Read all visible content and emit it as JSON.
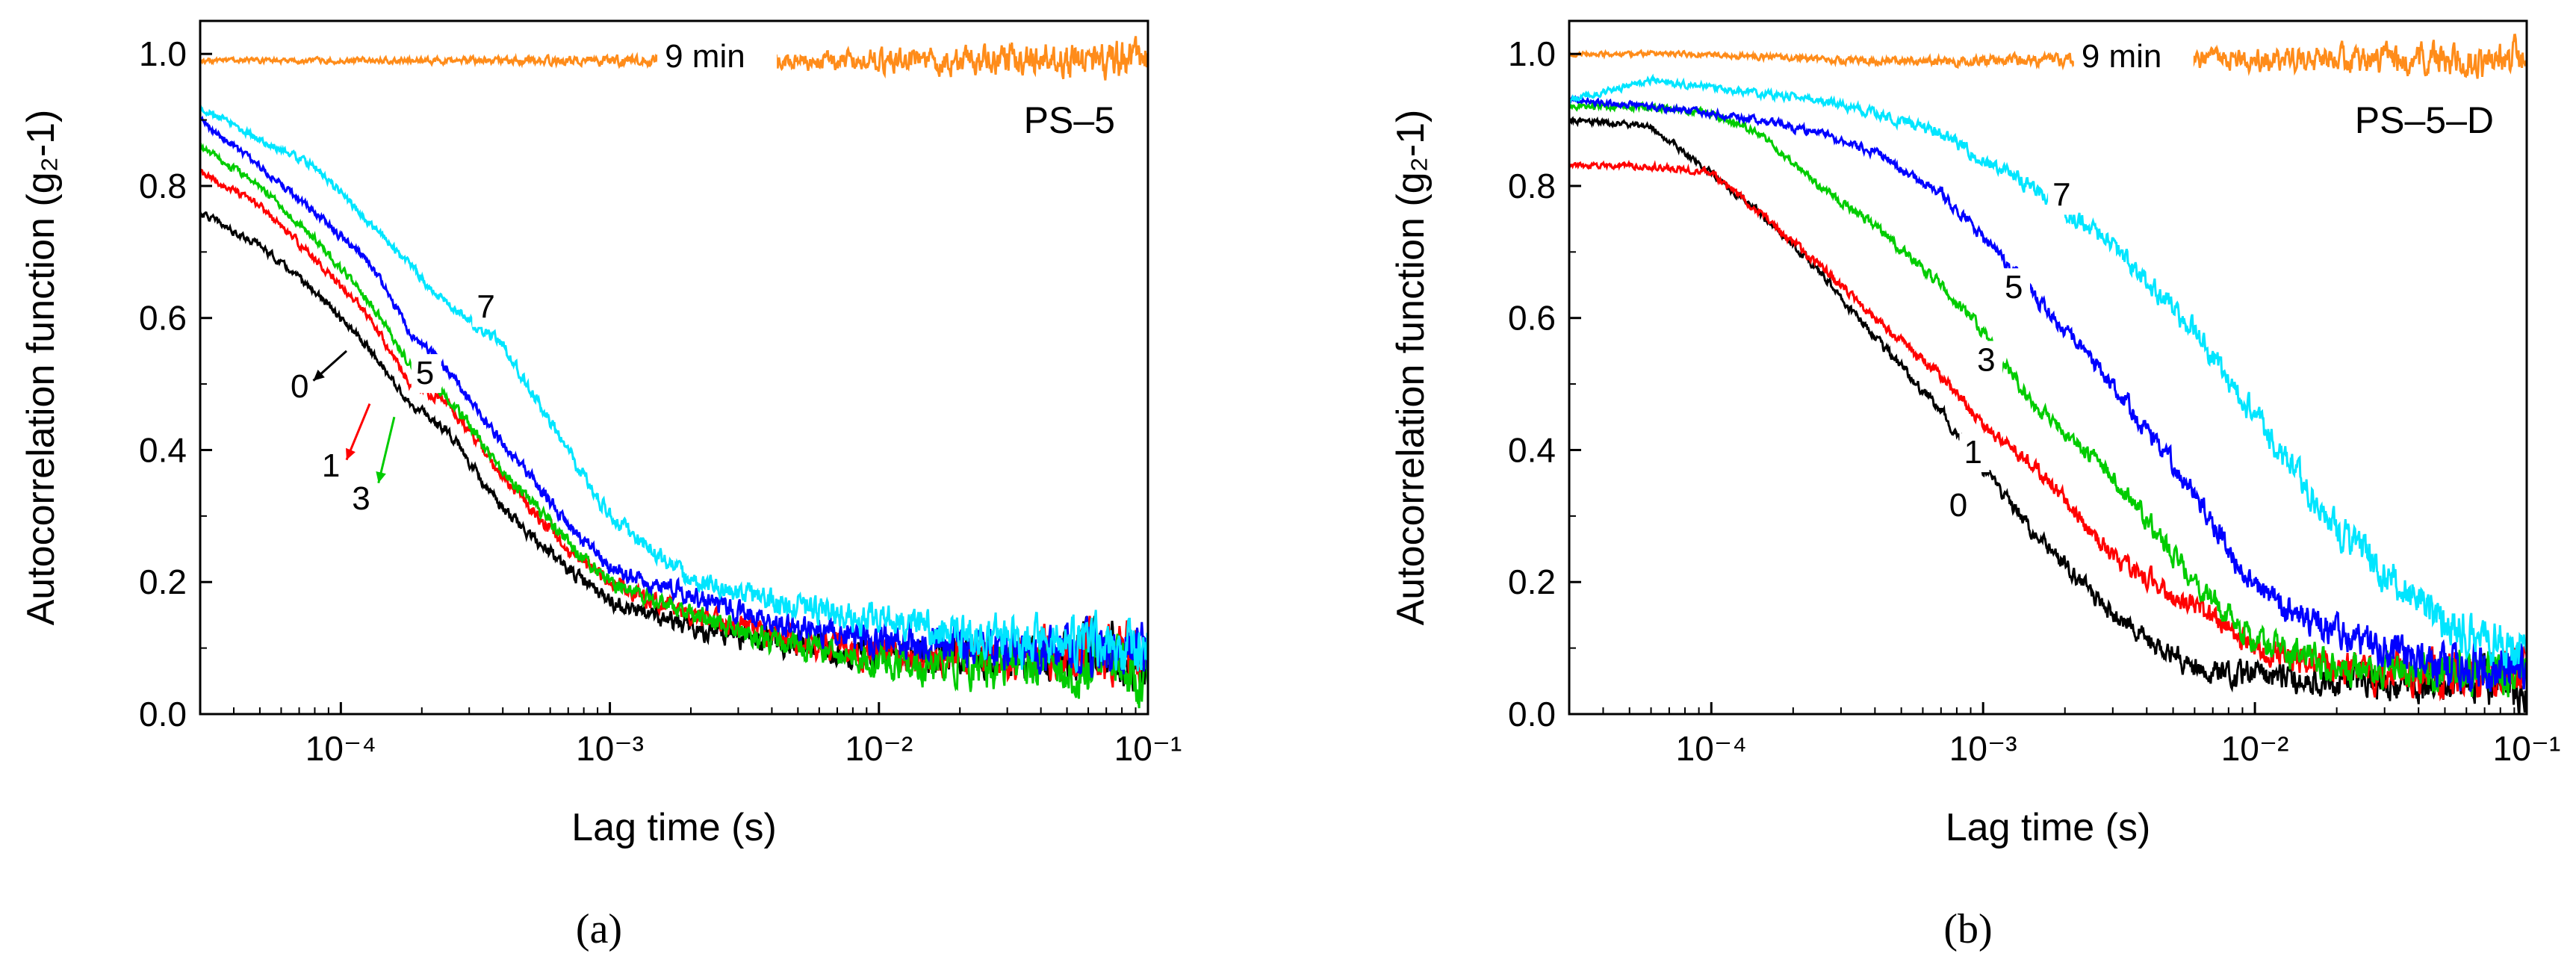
{
  "chart_data": [
    {
      "panel": "a",
      "type": "line",
      "caption": "(a)",
      "xlabel": "Lag time (s)",
      "ylabel": "Autocorrelation function (g₂-1)",
      "xscale": "log",
      "xlim": [
        3e-05,
        0.1
      ],
      "ylim": [
        0.0,
        1.05
      ],
      "xticks": [
        0.0001,
        0.001,
        0.01,
        0.1
      ],
      "xtick_labels": [
        "10⁻⁴",
        "10⁻³",
        "10⁻²",
        "10⁻¹"
      ],
      "yticks": [
        0.0,
        0.2,
        0.4,
        0.6,
        0.8,
        1.0
      ],
      "ytick_labels": [
        "0.0",
        "0.2",
        "0.4",
        "0.6",
        "0.8",
        "1.0"
      ],
      "sample_label": "PS–5",
      "series": [
        {
          "name": "0",
          "color": "#000000",
          "noise": 0.012,
          "x": [
            3e-05,
            5e-05,
            8e-05,
            0.00013,
            0.00018,
            0.00025,
            0.0004,
            0.0007,
            0.001,
            0.002,
            0.004,
            0.01,
            0.03,
            0.1
          ],
          "y": [
            0.76,
            0.71,
            0.64,
            0.55,
            0.47,
            0.43,
            0.31,
            0.22,
            0.17,
            0.13,
            0.11,
            0.09,
            0.09,
            0.09
          ]
        },
        {
          "name": "1",
          "color": "#ff0000",
          "noise": 0.012,
          "x": [
            3e-05,
            5e-05,
            8e-05,
            0.00013,
            0.00018,
            0.00025,
            0.0004,
            0.0007,
            0.001,
            0.002,
            0.004,
            0.01,
            0.03,
            0.1
          ],
          "y": [
            0.82,
            0.77,
            0.69,
            0.6,
            0.5,
            0.47,
            0.36,
            0.25,
            0.2,
            0.15,
            0.12,
            0.09,
            0.09,
            0.09
          ]
        },
        {
          "name": "3",
          "color": "#00cc00",
          "noise": 0.012,
          "x": [
            3e-05,
            5e-05,
            8e-05,
            0.00013,
            0.00018,
            0.00025,
            0.0004,
            0.0007,
            0.001,
            0.002,
            0.004,
            0.01,
            0.03,
            0.1
          ],
          "y": [
            0.86,
            0.8,
            0.72,
            0.62,
            0.53,
            0.48,
            0.37,
            0.26,
            0.2,
            0.15,
            0.11,
            0.08,
            0.07,
            0.07
          ]
        },
        {
          "name": "5",
          "color": "#0000ff",
          "noise": 0.012,
          "x": [
            3e-05,
            5e-05,
            8e-05,
            0.00013,
            0.00018,
            0.00025,
            0.0004,
            0.0007,
            0.001,
            0.002,
            0.004,
            0.01,
            0.03,
            0.1
          ],
          "y": [
            0.9,
            0.83,
            0.76,
            0.68,
            0.58,
            0.52,
            0.41,
            0.29,
            0.22,
            0.18,
            0.14,
            0.11,
            0.1,
            0.1
          ]
        },
        {
          "name": "7",
          "color": "#00e5ff",
          "noise": 0.012,
          "x": [
            3e-05,
            5e-05,
            8e-05,
            0.00013,
            0.00018,
            0.00025,
            0.0004,
            0.0007,
            0.001,
            0.002,
            0.004,
            0.01,
            0.03,
            0.1
          ],
          "y": [
            0.92,
            0.87,
            0.83,
            0.74,
            0.68,
            0.62,
            0.56,
            0.4,
            0.3,
            0.2,
            0.17,
            0.14,
            0.11,
            0.1
          ]
        },
        {
          "name": "9 min",
          "color": "#ff8c1a",
          "noise": 0.008,
          "x": [
            3e-05,
            0.0001,
            0.0003,
            0.001,
            0.003,
            0.01,
            0.03,
            0.1
          ],
          "y": [
            0.99,
            0.99,
            0.99,
            0.99,
            0.99,
            0.99,
            0.99,
            0.99
          ]
        }
      ],
      "annotations": [
        {
          "text": "9 min",
          "x": 0.0016,
          "y": 0.98
        },
        {
          "text": "7",
          "x": 0.00032,
          "y": 0.6
        },
        {
          "text": "5",
          "x": 0.00019,
          "y": 0.5
        },
        {
          "text": "0",
          "x": 6.5e-05,
          "y": 0.48
        },
        {
          "text": "1",
          "x": 8.5e-05,
          "y": 0.36
        },
        {
          "text": "3",
          "x": 0.00011,
          "y": 0.31
        }
      ]
    },
    {
      "panel": "b",
      "type": "line",
      "caption": "(b)",
      "xlabel": "Lag time (s)",
      "ylabel": "Autocorrelation function (g₂-1)",
      "xscale": "log",
      "xlim": [
        3e-05,
        0.1
      ],
      "ylim": [
        0.0,
        1.05
      ],
      "xticks": [
        0.0001,
        0.001,
        0.01,
        0.1
      ],
      "xtick_labels": [
        "10⁻⁴",
        "10⁻³",
        "10⁻²",
        "10⁻¹"
      ],
      "yticks": [
        0.0,
        0.2,
        0.4,
        0.6,
        0.8,
        1.0
      ],
      "ytick_labels": [
        "0.0",
        "0.2",
        "0.4",
        "0.6",
        "0.8",
        "1.0"
      ],
      "sample_label": "PS–5–D",
      "series": [
        {
          "name": "0",
          "color": "#000000",
          "noise": 0.01,
          "x": [
            3e-05,
            6e-05,
            0.0001,
            0.00015,
            0.00025,
            0.0004,
            0.0007,
            0.001,
            0.0015,
            0.003,
            0.006,
            0.01,
            0.02,
            0.05,
            0.1
          ],
          "y": [
            0.9,
            0.89,
            0.82,
            0.76,
            0.67,
            0.57,
            0.46,
            0.37,
            0.28,
            0.15,
            0.07,
            0.06,
            0.05,
            0.05,
            0.05
          ]
        },
        {
          "name": "1",
          "color": "#ff0000",
          "noise": 0.01,
          "x": [
            3e-05,
            6e-05,
            0.0001,
            0.00015,
            0.00025,
            0.0004,
            0.0007,
            0.001,
            0.0015,
            0.003,
            0.006,
            0.01,
            0.02,
            0.05,
            0.1
          ],
          "y": [
            0.83,
            0.83,
            0.82,
            0.76,
            0.68,
            0.6,
            0.51,
            0.44,
            0.38,
            0.24,
            0.16,
            0.1,
            0.07,
            0.06,
            0.06
          ]
        },
        {
          "name": "3",
          "color": "#00cc00",
          "noise": 0.01,
          "x": [
            3e-05,
            6e-05,
            0.0001,
            0.00015,
            0.00025,
            0.0004,
            0.0007,
            0.001,
            0.0015,
            0.003,
            0.006,
            0.01,
            0.02,
            0.05,
            0.1
          ],
          "y": [
            0.92,
            0.92,
            0.91,
            0.88,
            0.8,
            0.74,
            0.65,
            0.58,
            0.47,
            0.36,
            0.2,
            0.11,
            0.07,
            0.06,
            0.06
          ]
        },
        {
          "name": "5",
          "color": "#0000ff",
          "noise": 0.01,
          "x": [
            3e-05,
            6e-05,
            0.0001,
            0.00015,
            0.00025,
            0.0004,
            0.0007,
            0.001,
            0.0015,
            0.003,
            0.006,
            0.01,
            0.02,
            0.05,
            0.1
          ],
          "y": [
            0.93,
            0.92,
            0.91,
            0.9,
            0.88,
            0.85,
            0.79,
            0.72,
            0.64,
            0.5,
            0.33,
            0.19,
            0.12,
            0.07,
            0.07
          ]
        },
        {
          "name": "7",
          "color": "#00e5ff",
          "noise": 0.01,
          "x": [
            3e-05,
            6e-05,
            0.0001,
            0.00015,
            0.00025,
            0.0004,
            0.0007,
            0.001,
            0.0015,
            0.003,
            0.006,
            0.01,
            0.02,
            0.05,
            0.1
          ],
          "y": [
            0.93,
            0.96,
            0.95,
            0.94,
            0.93,
            0.91,
            0.88,
            0.84,
            0.8,
            0.71,
            0.58,
            0.45,
            0.28,
            0.14,
            0.09
          ]
        },
        {
          "name": "9 min",
          "color": "#ff8c1a",
          "noise": 0.008,
          "x": [
            3e-05,
            0.0001,
            0.0003,
            0.001,
            0.003,
            0.01,
            0.03,
            0.1
          ],
          "y": [
            1.0,
            1.0,
            0.99,
            0.99,
            0.99,
            0.99,
            0.99,
            0.99
          ]
        }
      ],
      "annotations": [
        {
          "text": "9 min",
          "x": 0.0023,
          "y": 0.98
        },
        {
          "text": "7",
          "x": 0.0018,
          "y": 0.77
        },
        {
          "text": "5",
          "x": 0.0012,
          "y": 0.63
        },
        {
          "text": "3",
          "x": 0.00095,
          "y": 0.52
        },
        {
          "text": "1",
          "x": 0.00085,
          "y": 0.38
        },
        {
          "text": "0",
          "x": 0.00075,
          "y": 0.3
        }
      ]
    }
  ]
}
